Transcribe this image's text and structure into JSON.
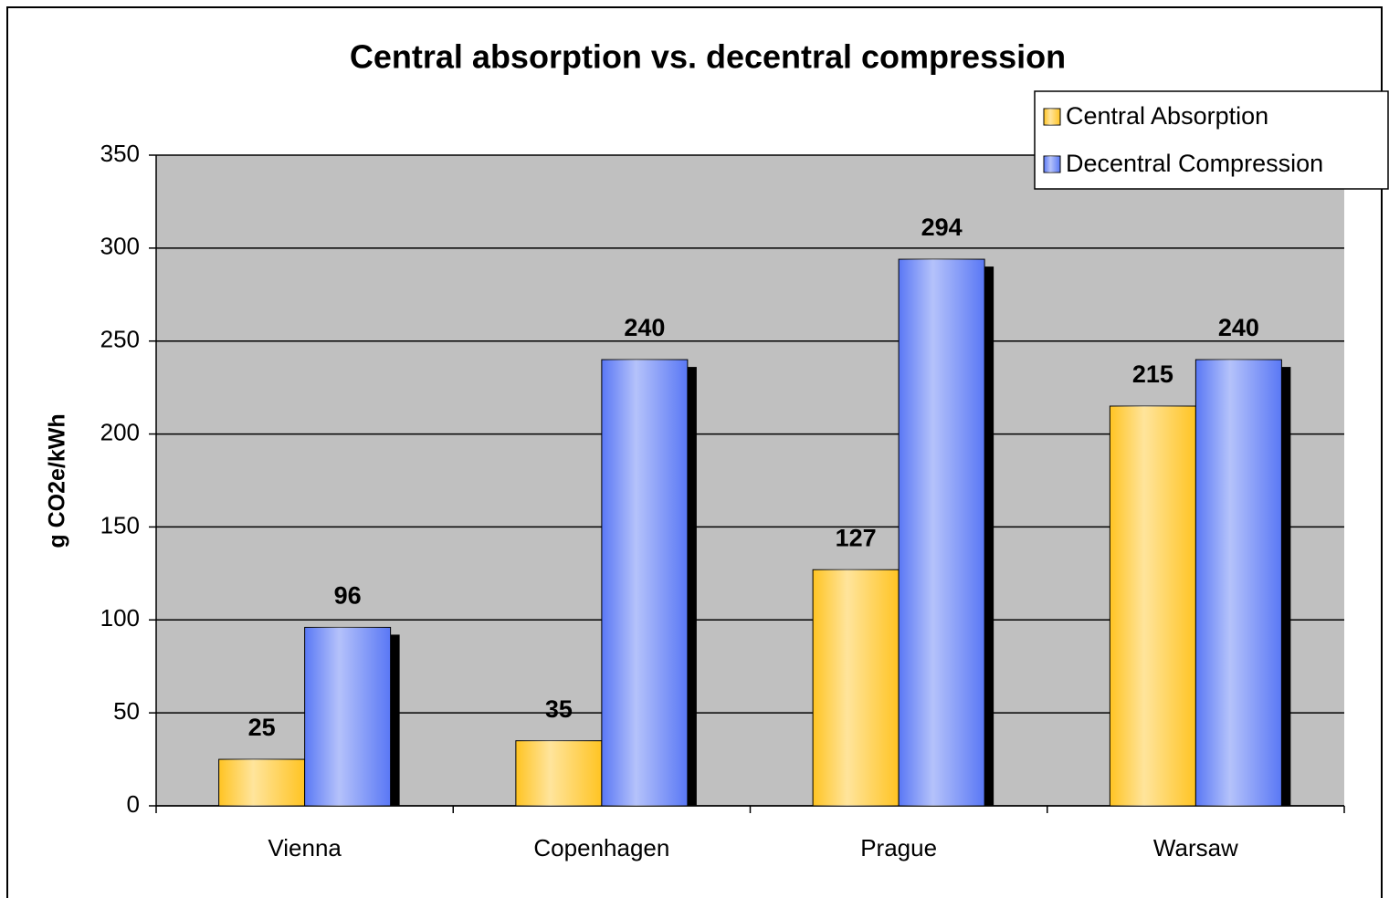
{
  "chart_data": {
    "type": "bar",
    "title": "Central absorption vs. decentral compression",
    "y_label": "g CO2e/kWh",
    "categories": [
      "Vienna",
      "Copenhagen",
      "Prague",
      "Warsaw"
    ],
    "series": [
      {
        "name": "Central Absorption",
        "color": "#ffc423",
        "values": [
          25,
          35,
          127,
          215
        ]
      },
      {
        "name": "Decentral Compression",
        "color": "#5a78f5",
        "values": [
          96,
          240,
          294,
          240
        ]
      }
    ],
    "ylim": [
      0,
      350
    ],
    "yticks": [
      0,
      50,
      100,
      150,
      200,
      250,
      300,
      350
    ],
    "grid": true,
    "legend": "top-right",
    "data_labels": true
  }
}
